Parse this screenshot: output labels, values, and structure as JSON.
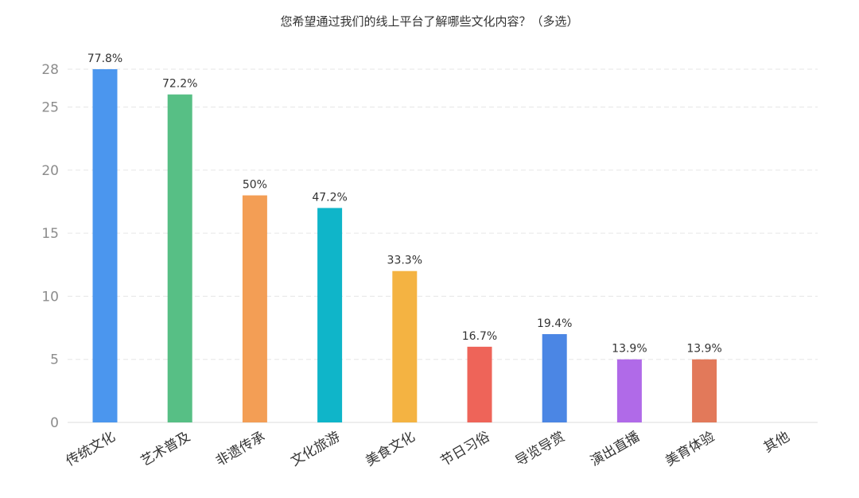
{
  "chart_data": {
    "type": "bar",
    "title": "您希望通过我们的线上平台了解哪些文化内容？（多选）",
    "categories": [
      "传统文化",
      "艺术普及",
      "非遗传承",
      "文化旅游",
      "美食文化",
      "节日习俗",
      "导览导赏",
      "演出直播",
      "美育体验",
      "其他"
    ],
    "values": [
      28,
      26,
      18,
      17,
      12,
      6,
      7,
      5,
      5,
      0
    ],
    "data_labels": [
      "77.8%",
      "72.2%",
      "50%",
      "47.2%",
      "33.3%",
      "16.7%",
      "19.4%",
      "13.9%",
      "13.9%",
      ""
    ],
    "colors": [
      "#4b96ee",
      "#57bf85",
      "#f39e55",
      "#0fb5c9",
      "#f4b342",
      "#ee6459",
      "#4b86e4",
      "#b06ae8",
      "#e2795a",
      "#4b96ee"
    ],
    "yticks": [
      0,
      5,
      10,
      15,
      20,
      25,
      28
    ],
    "ylim": [
      0,
      28
    ],
    "grid": true,
    "xlabel": "",
    "ylabel": ""
  }
}
